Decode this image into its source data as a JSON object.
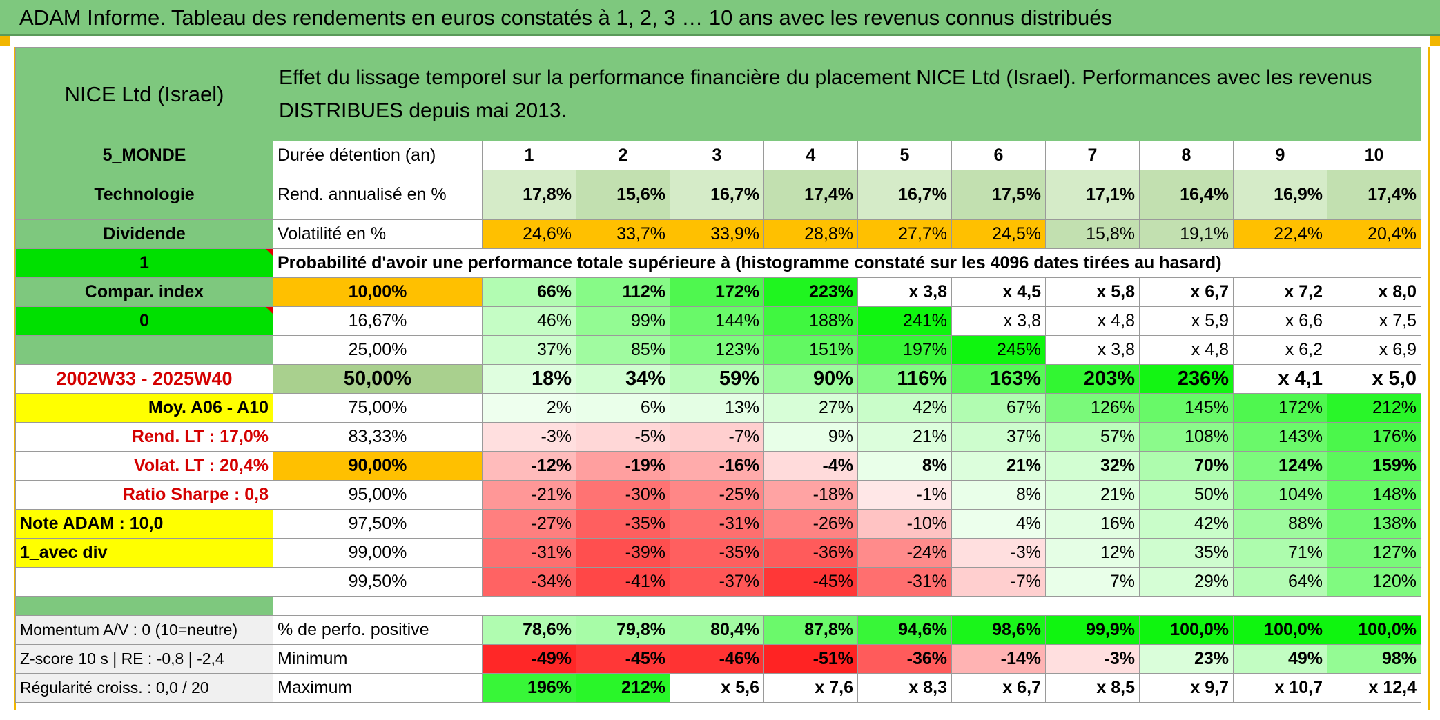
{
  "title": "ADAM Informe. Tableau des rendements en euros constatés à 1, 2, 3 … 10 ans avec les revenus connus distribués",
  "left": {
    "name": "NICE Ltd (Israel)",
    "zone": "5_MONDE",
    "sector": "Technologie",
    "distribution": "Dividende",
    "flag1": "1",
    "compar_index": "Compar. index",
    "flag0": "0",
    "period": "2002W33 - 2025W40",
    "moy": "Moy. A06 - A10",
    "rend_lt": "Rend. LT :   17,0%",
    "volat_lt": "Volat. LT :   20,4%",
    "sharpe": "Ratio Sharpe :    0,8",
    "note": "Note ADAM : 10,0",
    "avec_div": "1_avec div",
    "momentum": "Momentum A/V : 0 (10=neutre)",
    "zscore": "Z-score 10 s | RE : -0,8 | -2,4",
    "regularite": "Régularité croiss. : 0,0 / 20"
  },
  "header_text": "Effet du lissage temporel sur la performance financière du placement NICE Ltd (Israel). Performances avec les revenus DISTRIBUES depuis mai 2013.",
  "durations_label": "Durée détention (an)",
  "durations": [
    "1",
    "2",
    "3",
    "4",
    "5",
    "6",
    "7",
    "8",
    "9",
    "10"
  ],
  "rend_label": "Rend. annualisé en %",
  "rend": [
    "17,8%",
    "15,6%",
    "16,7%",
    "17,4%",
    "16,7%",
    "17,5%",
    "17,1%",
    "16,4%",
    "16,9%",
    "17,4%"
  ],
  "vol_label": "Volatilité en %",
  "vol": [
    "24,6%",
    "33,7%",
    "33,9%",
    "28,8%",
    "27,7%",
    "24,5%",
    "15,8%",
    "19,1%",
    "22,4%",
    "20,4%"
  ],
  "prob_label": "Probabilité d'avoir une performance totale supérieure à (histogramme constaté sur les 4096 dates tirées au hasard)",
  "prob_rows": [
    {
      "p": "10,00%",
      "v": [
        "66%",
        "112%",
        "172%",
        "223%",
        "x 3,8",
        "x 4,5",
        "x 5,8",
        "x 6,7",
        "x 7,2",
        "x 8,0"
      ]
    },
    {
      "p": "16,67%",
      "v": [
        "46%",
        "99%",
        "144%",
        "188%",
        "241%",
        "x 3,8",
        "x 4,8",
        "x 5,9",
        "x 6,6",
        "x 7,5"
      ]
    },
    {
      "p": "25,00%",
      "v": [
        "37%",
        "85%",
        "123%",
        "151%",
        "197%",
        "245%",
        "x 3,8",
        "x 4,8",
        "x 6,2",
        "x 6,9"
      ]
    },
    {
      "p": "50,00%",
      "v": [
        "18%",
        "34%",
        "59%",
        "90%",
        "116%",
        "163%",
        "203%",
        "236%",
        "x 4,1",
        "x 5,0"
      ]
    },
    {
      "p": "75,00%",
      "v": [
        "2%",
        "6%",
        "13%",
        "27%",
        "42%",
        "67%",
        "126%",
        "145%",
        "172%",
        "212%"
      ]
    },
    {
      "p": "83,33%",
      "v": [
        "-3%",
        "-5%",
        "-7%",
        "9%",
        "21%",
        "37%",
        "57%",
        "108%",
        "143%",
        "176%"
      ]
    },
    {
      "p": "90,00%",
      "v": [
        "-12%",
        "-19%",
        "-16%",
        "-4%",
        "8%",
        "21%",
        "32%",
        "70%",
        "124%",
        "159%"
      ]
    },
    {
      "p": "95,00%",
      "v": [
        "-21%",
        "-30%",
        "-25%",
        "-18%",
        "-1%",
        "8%",
        "21%",
        "50%",
        "104%",
        "148%"
      ]
    },
    {
      "p": "97,50%",
      "v": [
        "-27%",
        "-35%",
        "-31%",
        "-26%",
        "-10%",
        "4%",
        "16%",
        "42%",
        "88%",
        "138%"
      ]
    },
    {
      "p": "99,00%",
      "v": [
        "-31%",
        "-39%",
        "-35%",
        "-36%",
        "-24%",
        "-3%",
        "12%",
        "35%",
        "71%",
        "127%"
      ]
    },
    {
      "p": "99,50%",
      "v": [
        "-34%",
        "-41%",
        "-37%",
        "-45%",
        "-31%",
        "-7%",
        "7%",
        "29%",
        "64%",
        "120%"
      ]
    }
  ],
  "pos_label": "% de perfo. positive",
  "pos": [
    "78,6%",
    "79,8%",
    "80,4%",
    "87,8%",
    "94,6%",
    "98,6%",
    "99,9%",
    "100,0%",
    "100,0%",
    "100,0%"
  ],
  "min_label": "Minimum",
  "min": [
    "-49%",
    "-45%",
    "-46%",
    "-51%",
    "-36%",
    "-14%",
    "-3%",
    "23%",
    "49%",
    "98%"
  ],
  "max_label": "Maximum",
  "max": [
    "196%",
    "212%",
    "x 5,6",
    "x 7,6",
    "x 8,3",
    "x 6,7",
    "x 8,5",
    "x 9,7",
    "x 10,7",
    "x 12,4"
  ],
  "colors": {
    "header_green": "#7ec87e",
    "orange": "#ffc000",
    "yellow": "#ffff00",
    "bright_green": "#00e000",
    "light_green": "#c6e0b4",
    "red_text": "#d40000"
  }
}
